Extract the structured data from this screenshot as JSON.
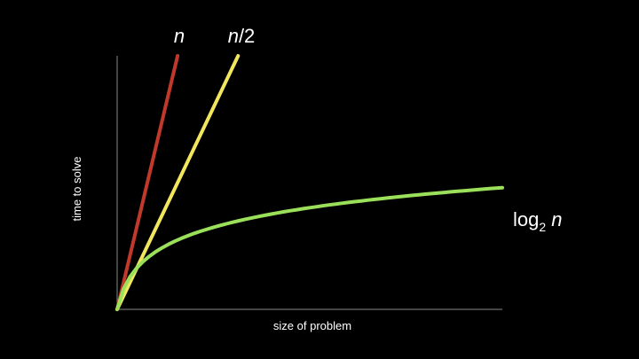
{
  "chart_data": {
    "type": "line",
    "title": "",
    "xlabel": "size of problem",
    "ylabel": "time to solve",
    "xlim": [
      0,
      1
    ],
    "ylim": [
      0,
      1
    ],
    "grid": false,
    "series": [
      {
        "name": "n",
        "label_parts": {
          "base": "",
          "sub": "",
          "italic": "n",
          "suffix": ""
        },
        "color": "#c0392b",
        "x": [
          0.0,
          0.157
        ],
        "y": [
          0.0,
          1.0
        ]
      },
      {
        "name": "n/2",
        "label_parts": {
          "base": "",
          "sub": "",
          "italic": "n",
          "suffix": "/2"
        },
        "color": "#f2e75c",
        "x": [
          0.0,
          0.314
        ],
        "y": [
          0.0,
          1.0
        ]
      },
      {
        "name": "log2 n",
        "label_parts": {
          "base": "log",
          "sub": "2",
          "italic": "n",
          "suffix": ""
        },
        "color": "#9be05a",
        "curve": "log",
        "x": [
          0.0,
          0.02,
          0.05,
          0.1,
          0.2,
          0.35,
          0.5,
          0.7,
          1.0
        ],
        "y": [
          0.0,
          0.14,
          0.23,
          0.29,
          0.35,
          0.39,
          0.42,
          0.45,
          0.48
        ]
      }
    ]
  }
}
